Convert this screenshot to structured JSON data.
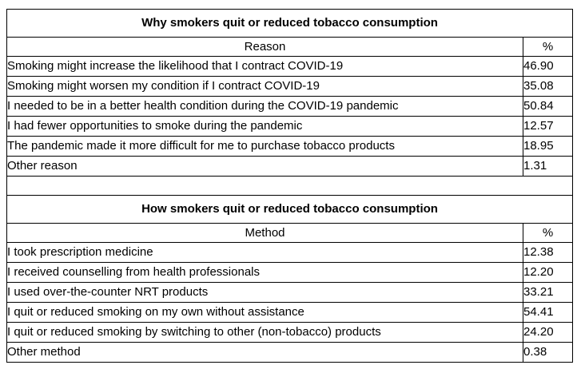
{
  "tables": [
    {
      "title": "Why smokers quit or reduced tobacco consumption",
      "columns": {
        "label": "Reason",
        "value": "%"
      },
      "rows": [
        {
          "label": "Smoking might increase the likelihood that I contract COVID-19",
          "value": "46.90"
        },
        {
          "label": "Smoking might worsen my condition if I contract COVID-19",
          "value": "35.08"
        },
        {
          "label": "I needed to be in a better health condition during the COVID-19 pandemic",
          "value": "50.84"
        },
        {
          "label": "I had fewer opportunities to smoke during the pandemic",
          "value": "12.57"
        },
        {
          "label": "The pandemic made it more difficult for me to purchase tobacco products",
          "value": "18.95"
        },
        {
          "label": "Other reason",
          "value": "1.31"
        }
      ]
    },
    {
      "title": "How smokers quit or reduced tobacco consumption",
      "columns": {
        "label": "Method",
        "value": "%"
      },
      "rows": [
        {
          "label": "I took prescription medicine",
          "value": "12.38"
        },
        {
          "label": "I received counselling from health professionals",
          "value": "12.20"
        },
        {
          "label": "I used over-the-counter NRT products",
          "value": "33.21"
        },
        {
          "label": "I quit or reduced smoking on my own without assistance",
          "value": "54.41"
        },
        {
          "label": "I quit or reduced smoking by switching to other (non-tobacco) products",
          "value": "24.20"
        },
        {
          "label": "Other method",
          "value": "0.38"
        }
      ]
    }
  ]
}
